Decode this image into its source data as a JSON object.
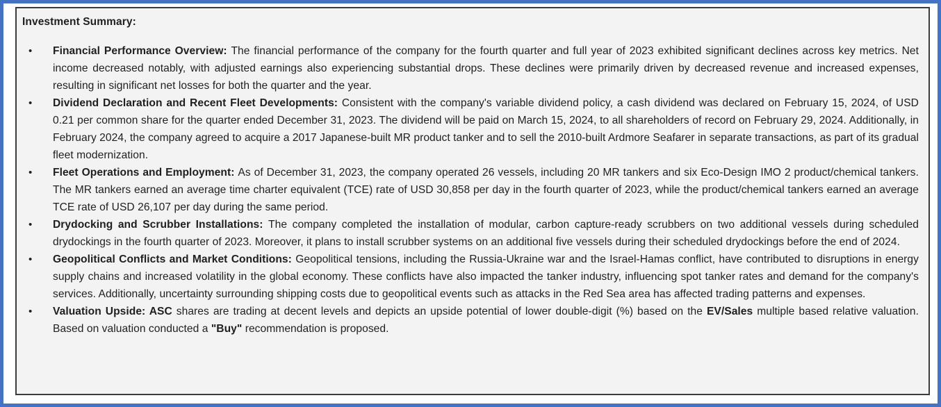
{
  "panel": {
    "title": "Investment Summary:",
    "bullets": [
      {
        "segments": [
          {
            "bold": true,
            "text": "Financial Performance Overview: "
          },
          {
            "bold": false,
            "text": "The financial performance of the company for the fourth quarter and full year of 2023 exhibited significant declines across key metrics. Net income decreased notably, with adjusted earnings also experiencing substantial drops. These declines were primarily driven by decreased revenue and increased expenses, resulting in significant net losses for both the quarter and the year."
          }
        ]
      },
      {
        "segments": [
          {
            "bold": true,
            "text": "Dividend Declaration and Recent Fleet Developments: "
          },
          {
            "bold": false,
            "text": "Consistent with the company's variable dividend policy, a cash dividend was declared on February 15, 2024, of USD 0.21 per common share for the quarter ended December 31, 2023. The dividend will be paid on March 15, 2024, to all shareholders of record on February 29, 2024. Additionally, in February 2024, the company agreed to acquire a 2017 Japanese-built MR product tanker and to sell the 2010-built Ardmore Seafarer in separate transactions, as part of its gradual fleet modernization."
          }
        ]
      },
      {
        "segments": [
          {
            "bold": true,
            "text": "Fleet Operations and Employment: "
          },
          {
            "bold": false,
            "text": "As of December 31, 2023, the company operated 26 vessels, including 20 MR tankers and six Eco-Design IMO 2 product/chemical tankers. The MR tankers earned an average time charter equivalent (TCE) rate of USD 30,858 per day in the fourth quarter of 2023, while the product/chemical tankers earned an average TCE rate of USD 26,107 per day during the same period."
          }
        ]
      },
      {
        "segments": [
          {
            "bold": true,
            "text": "Drydocking and Scrubber Installations: "
          },
          {
            "bold": false,
            "text": "The company completed the installation of modular, carbon capture-ready scrubbers on two additional vessels during scheduled drydockings in the fourth quarter of 2023. Moreover, it plans to install scrubber systems on an additional five vessels during their scheduled drydockings before the end of 2024."
          }
        ]
      },
      {
        "segments": [
          {
            "bold": true,
            "text": "Geopolitical Conflicts and Market Conditions: "
          },
          {
            "bold": false,
            "text": "Geopolitical tensions, including the Russia-Ukraine war and the Israel-Hamas conflict, have contributed to disruptions in energy supply chains and increased volatility in the global economy. These conflicts have also impacted the tanker industry, influencing spot tanker rates and demand for the company's services. Additionally, uncertainty surrounding shipping costs due to geopolitical events such as attacks in the Red Sea area has affected trading patterns and expenses."
          }
        ]
      },
      {
        "segments": [
          {
            "bold": true,
            "text": "Valuation Upside: ASC "
          },
          {
            "bold": false,
            "text": "shares are trading at decent levels and depicts an upside potential of lower double-digit (%) based on the "
          },
          {
            "bold": true,
            "text": "EV/Sales "
          },
          {
            "bold": false,
            "text": "multiple based relative valuation. Based on valuation conducted a "
          },
          {
            "bold": true,
            "text": "\"Buy\" "
          },
          {
            "bold": false,
            "text": "recommendation is proposed."
          }
        ]
      }
    ]
  },
  "colors": {
    "outer_border": "#4472C4",
    "inner_border": "#3b3b3b",
    "panel_bg": "#f3f3f3",
    "text": "#1f1f1f"
  }
}
